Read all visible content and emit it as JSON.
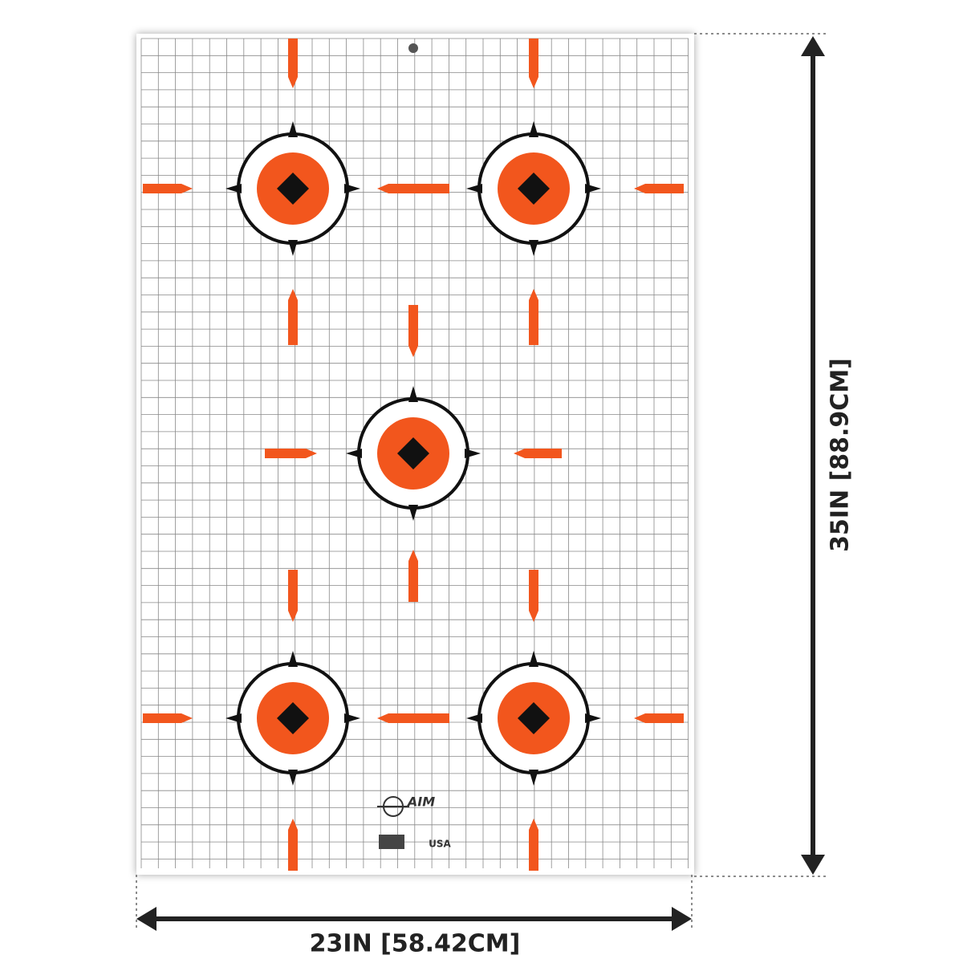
{
  "dimensions": {
    "height": {
      "label": "35IN [88.9CM]"
    },
    "width": {
      "label": "23IN [58.42CM]"
    }
  },
  "logo": {
    "brand": "AIM",
    "origin": "USA"
  }
}
